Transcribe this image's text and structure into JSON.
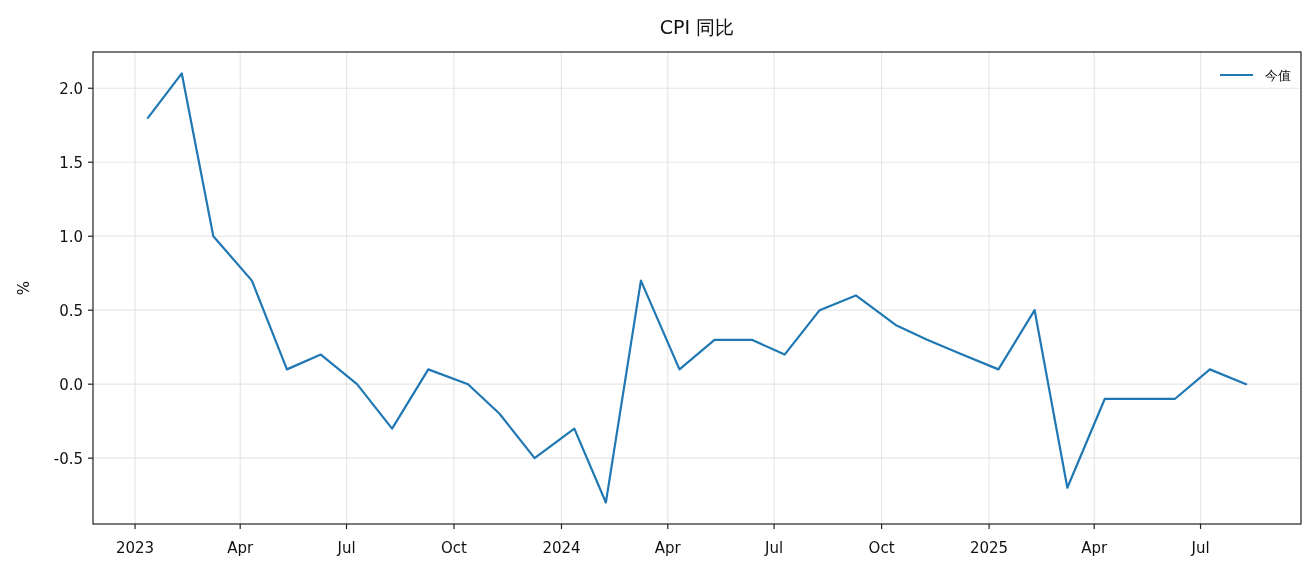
{
  "chart_data": {
    "type": "line",
    "title": "CPI 同比",
    "ylabel": "%",
    "x": [
      "2023-01-12",
      "2023-02-10",
      "2023-03-09",
      "2023-04-11",
      "2023-05-11",
      "2023-06-09",
      "2023-07-10",
      "2023-08-09",
      "2023-09-09",
      "2023-10-13",
      "2023-11-09",
      "2023-12-09",
      "2024-01-12",
      "2024-02-08",
      "2024-03-09",
      "2024-04-11",
      "2024-05-11",
      "2024-06-12",
      "2024-07-10",
      "2024-08-09",
      "2024-09-09",
      "2024-10-13",
      "2024-11-09",
      "2024-12-09",
      "2025-01-09",
      "2025-02-09",
      "2025-03-09",
      "2025-04-10",
      "2025-05-10",
      "2025-06-09",
      "2025-07-09",
      "2025-08-09"
    ],
    "series": [
      {
        "name": "今值",
        "color": "#1f77b4",
        "values": [
          1.8,
          2.1,
          1.0,
          0.7,
          0.1,
          0.2,
          0.0,
          -0.3,
          0.1,
          0.0,
          -0.2,
          -0.5,
          -0.3,
          -0.8,
          0.7,
          0.1,
          0.3,
          0.3,
          0.2,
          0.5,
          0.6,
          0.4,
          0.3,
          0.2,
          0.1,
          0.5,
          -0.7,
          -0.1,
          -0.1,
          -0.1,
          0.1,
          0.0
        ]
      }
    ],
    "xlim": [
      "2022-11-26",
      "2025-09-25"
    ],
    "xticks": [
      {
        "value": "2023-01-01",
        "label": "2023"
      },
      {
        "value": "2023-04-01",
        "label": "Apr"
      },
      {
        "value": "2023-07-01",
        "label": "Jul"
      },
      {
        "value": "2023-10-01",
        "label": "Oct"
      },
      {
        "value": "2024-01-01",
        "label": "2024"
      },
      {
        "value": "2024-04-01",
        "label": "Apr"
      },
      {
        "value": "2024-07-01",
        "label": "Jul"
      },
      {
        "value": "2024-10-01",
        "label": "Oct"
      },
      {
        "value": "2025-01-01",
        "label": "2025"
      },
      {
        "value": "2025-04-01",
        "label": "Apr"
      },
      {
        "value": "2025-07-01",
        "label": "Jul"
      }
    ],
    "ylim": [
      -0.945,
      2.245
    ],
    "yticks": [
      -0.5,
      {
        "value": 0,
        "label": "0.0"
      },
      0.5,
      {
        "value": 1,
        "label": "1.0"
      },
      1.5,
      {
        "value": 2,
        "label": "2.0"
      }
    ],
    "grid": true,
    "legend": "top right",
    "line_style": "solid"
  }
}
